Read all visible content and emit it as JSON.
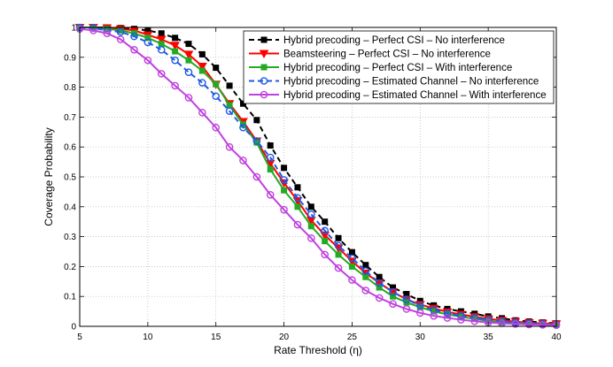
{
  "chart_data": {
    "type": "line",
    "title": "",
    "xlabel": "Rate Threshold (η)",
    "ylabel": "Coverage Probability",
    "xlim": [
      5,
      40
    ],
    "ylim": [
      0,
      1
    ],
    "xticks": [
      5,
      10,
      15,
      20,
      25,
      30,
      35,
      40
    ],
    "yticks": [
      0,
      0.1,
      0.2,
      0.3,
      0.4,
      0.5,
      0.6,
      0.7,
      0.8,
      0.9,
      1
    ],
    "grid": true,
    "legend_position": "top-right",
    "x": [
      5,
      6,
      7,
      8,
      9,
      10,
      11,
      12,
      13,
      14,
      15,
      16,
      17,
      18,
      19,
      20,
      21,
      22,
      23,
      24,
      25,
      26,
      27,
      28,
      29,
      30,
      31,
      32,
      33,
      34,
      35,
      36,
      37,
      38,
      39,
      40
    ],
    "series": [
      {
        "name": "Hybrid precoding – Perfect CSI – No interference",
        "color": "#000000",
        "dash": "dashed",
        "marker": "square",
        "values": [
          1.0,
          1.0,
          1.0,
          0.998,
          0.995,
          0.99,
          0.98,
          0.965,
          0.945,
          0.91,
          0.865,
          0.805,
          0.745,
          0.69,
          0.605,
          0.53,
          0.465,
          0.4,
          0.35,
          0.295,
          0.248,
          0.205,
          0.165,
          0.13,
          0.108,
          0.085,
          0.07,
          0.058,
          0.05,
          0.042,
          0.033,
          0.027,
          0.02,
          0.016,
          0.013,
          0.01
        ]
      },
      {
        "name": "Beamsteering – Perfect CSI – No interference",
        "color": "#ff0000",
        "dash": "solid",
        "marker": "triangle-down",
        "values": [
          1.0,
          1.0,
          0.998,
          0.995,
          0.99,
          0.975,
          0.96,
          0.94,
          0.91,
          0.87,
          0.81,
          0.745,
          0.685,
          0.62,
          0.545,
          0.48,
          0.42,
          0.355,
          0.305,
          0.262,
          0.218,
          0.178,
          0.145,
          0.115,
          0.09,
          0.073,
          0.06,
          0.048,
          0.04,
          0.032,
          0.025,
          0.02,
          0.016,
          0.012,
          0.01,
          0.008
        ]
      },
      {
        "name": "Hybrid precoding – Perfect CSI – With interference",
        "color": "#22aa22",
        "dash": "solid",
        "marker": "square",
        "values": [
          1.0,
          1.0,
          0.995,
          0.99,
          0.98,
          0.965,
          0.945,
          0.92,
          0.89,
          0.855,
          0.81,
          0.74,
          0.675,
          0.615,
          0.525,
          0.455,
          0.4,
          0.335,
          0.285,
          0.24,
          0.2,
          0.165,
          0.13,
          0.1,
          0.08,
          0.064,
          0.05,
          0.04,
          0.032,
          0.025,
          0.018,
          0.014,
          0.011,
          0.009,
          0.007,
          0.005
        ]
      },
      {
        "name": "Hybrid precoding – Estimated Channel  – No interference",
        "color": "#1e5ae6",
        "dash": "dashed",
        "marker": "circle",
        "values": [
          1.0,
          0.998,
          0.99,
          0.985,
          0.97,
          0.95,
          0.925,
          0.89,
          0.85,
          0.815,
          0.77,
          0.72,
          0.665,
          0.62,
          0.565,
          0.49,
          0.43,
          0.375,
          0.32,
          0.27,
          0.228,
          0.185,
          0.145,
          0.115,
          0.09,
          0.07,
          0.055,
          0.044,
          0.035,
          0.028,
          0.022,
          0.017,
          0.013,
          0.01,
          0.008,
          0.006
        ]
      },
      {
        "name": "Hybrid precoding – Estimated Channel  – With interference",
        "color": "#c040e0",
        "dash": "solid",
        "marker": "circle",
        "values": [
          0.995,
          0.99,
          0.98,
          0.96,
          0.925,
          0.89,
          0.845,
          0.805,
          0.765,
          0.715,
          0.665,
          0.6,
          0.555,
          0.5,
          0.44,
          0.39,
          0.34,
          0.295,
          0.24,
          0.195,
          0.155,
          0.12,
          0.095,
          0.075,
          0.058,
          0.045,
          0.035,
          0.028,
          0.022,
          0.017,
          0.013,
          0.01,
          0.008,
          0.006,
          0.005,
          0.004
        ]
      }
    ]
  }
}
